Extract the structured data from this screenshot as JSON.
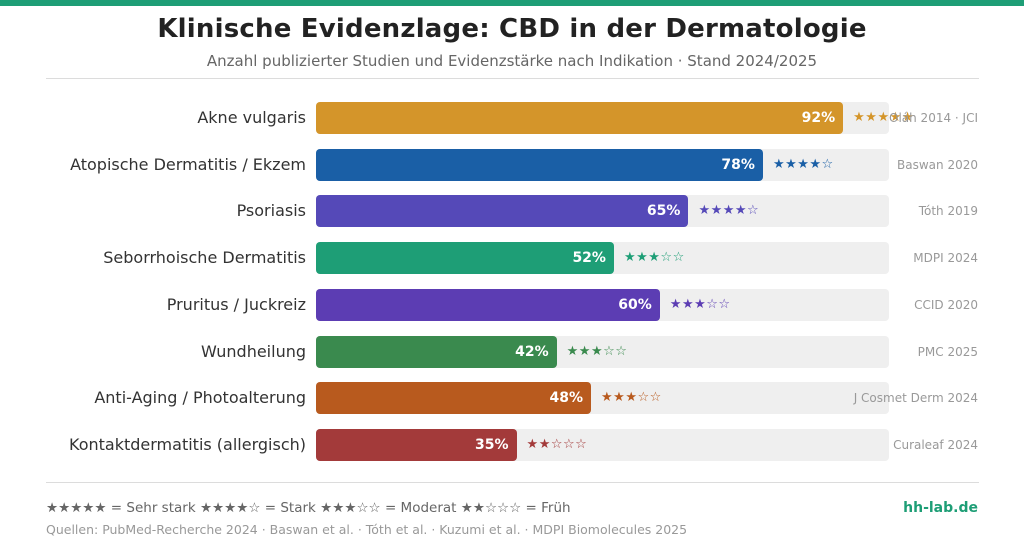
{
  "header": {
    "title": "Klinische Evidenzlage: CBD in der Dermatologie",
    "subtitle": "Anzahl publizierter Studien und Evidenzstärke nach Indikation · Stand 2024/2025"
  },
  "chart_data": {
    "type": "bar",
    "orientation": "horizontal",
    "title": "Klinische Evidenzlage: CBD in der Dermatologie",
    "subtitle": "Anzahl publizierter Studien und Evidenzstärke nach Indikation · Stand 2024/2025",
    "xlabel": "",
    "ylabel": "",
    "xlim": [
      0,
      100
    ],
    "unit": "%",
    "categories": [
      "Akne vulgaris",
      "Atopische Dermatitis / Ekzem",
      "Psoriasis",
      "Seborrhoische Dermatitis",
      "Pruritus / Juckreiz",
      "Wundheilung",
      "Anti-Aging / Photoalterung",
      "Kontaktdermatitis (allergisch)"
    ],
    "values": [
      92,
      78,
      65,
      52,
      60,
      42,
      48,
      35
    ],
    "value_labels": [
      "92%",
      "78%",
      "65%",
      "52%",
      "60%",
      "42%",
      "48%",
      "35%"
    ],
    "evidence_stars": [
      5,
      4,
      4,
      3,
      3,
      3,
      3,
      2
    ],
    "sources": [
      "Oláh 2014 · JCI",
      "Baswan 2020",
      "Tóth 2019",
      "MDPI 2024",
      "CCID 2020",
      "PMC 2025",
      "J Cosmet Derm 2024",
      "Curaleaf 2024"
    ],
    "colors": [
      "#d4952a",
      "#1a5fa6",
      "#5549b8",
      "#1e9e76",
      "#5c3db3",
      "#3a8a4e",
      "#b85a1e",
      "#a33a3a"
    ],
    "grid": false,
    "legend": "bottom-left"
  },
  "footer": {
    "legend": "★★★★★ = Sehr stark  ★★★★☆ = Stark  ★★★☆☆ = Moderat  ★★☆☆☆ = Früh",
    "sources": "Quellen: PubMed-Recherche 2024 · Baswan et al. · Tóth et al. · Kuzumi et al. · MDPI Biomolecules 2025",
    "brand": "hh-lab.de"
  }
}
